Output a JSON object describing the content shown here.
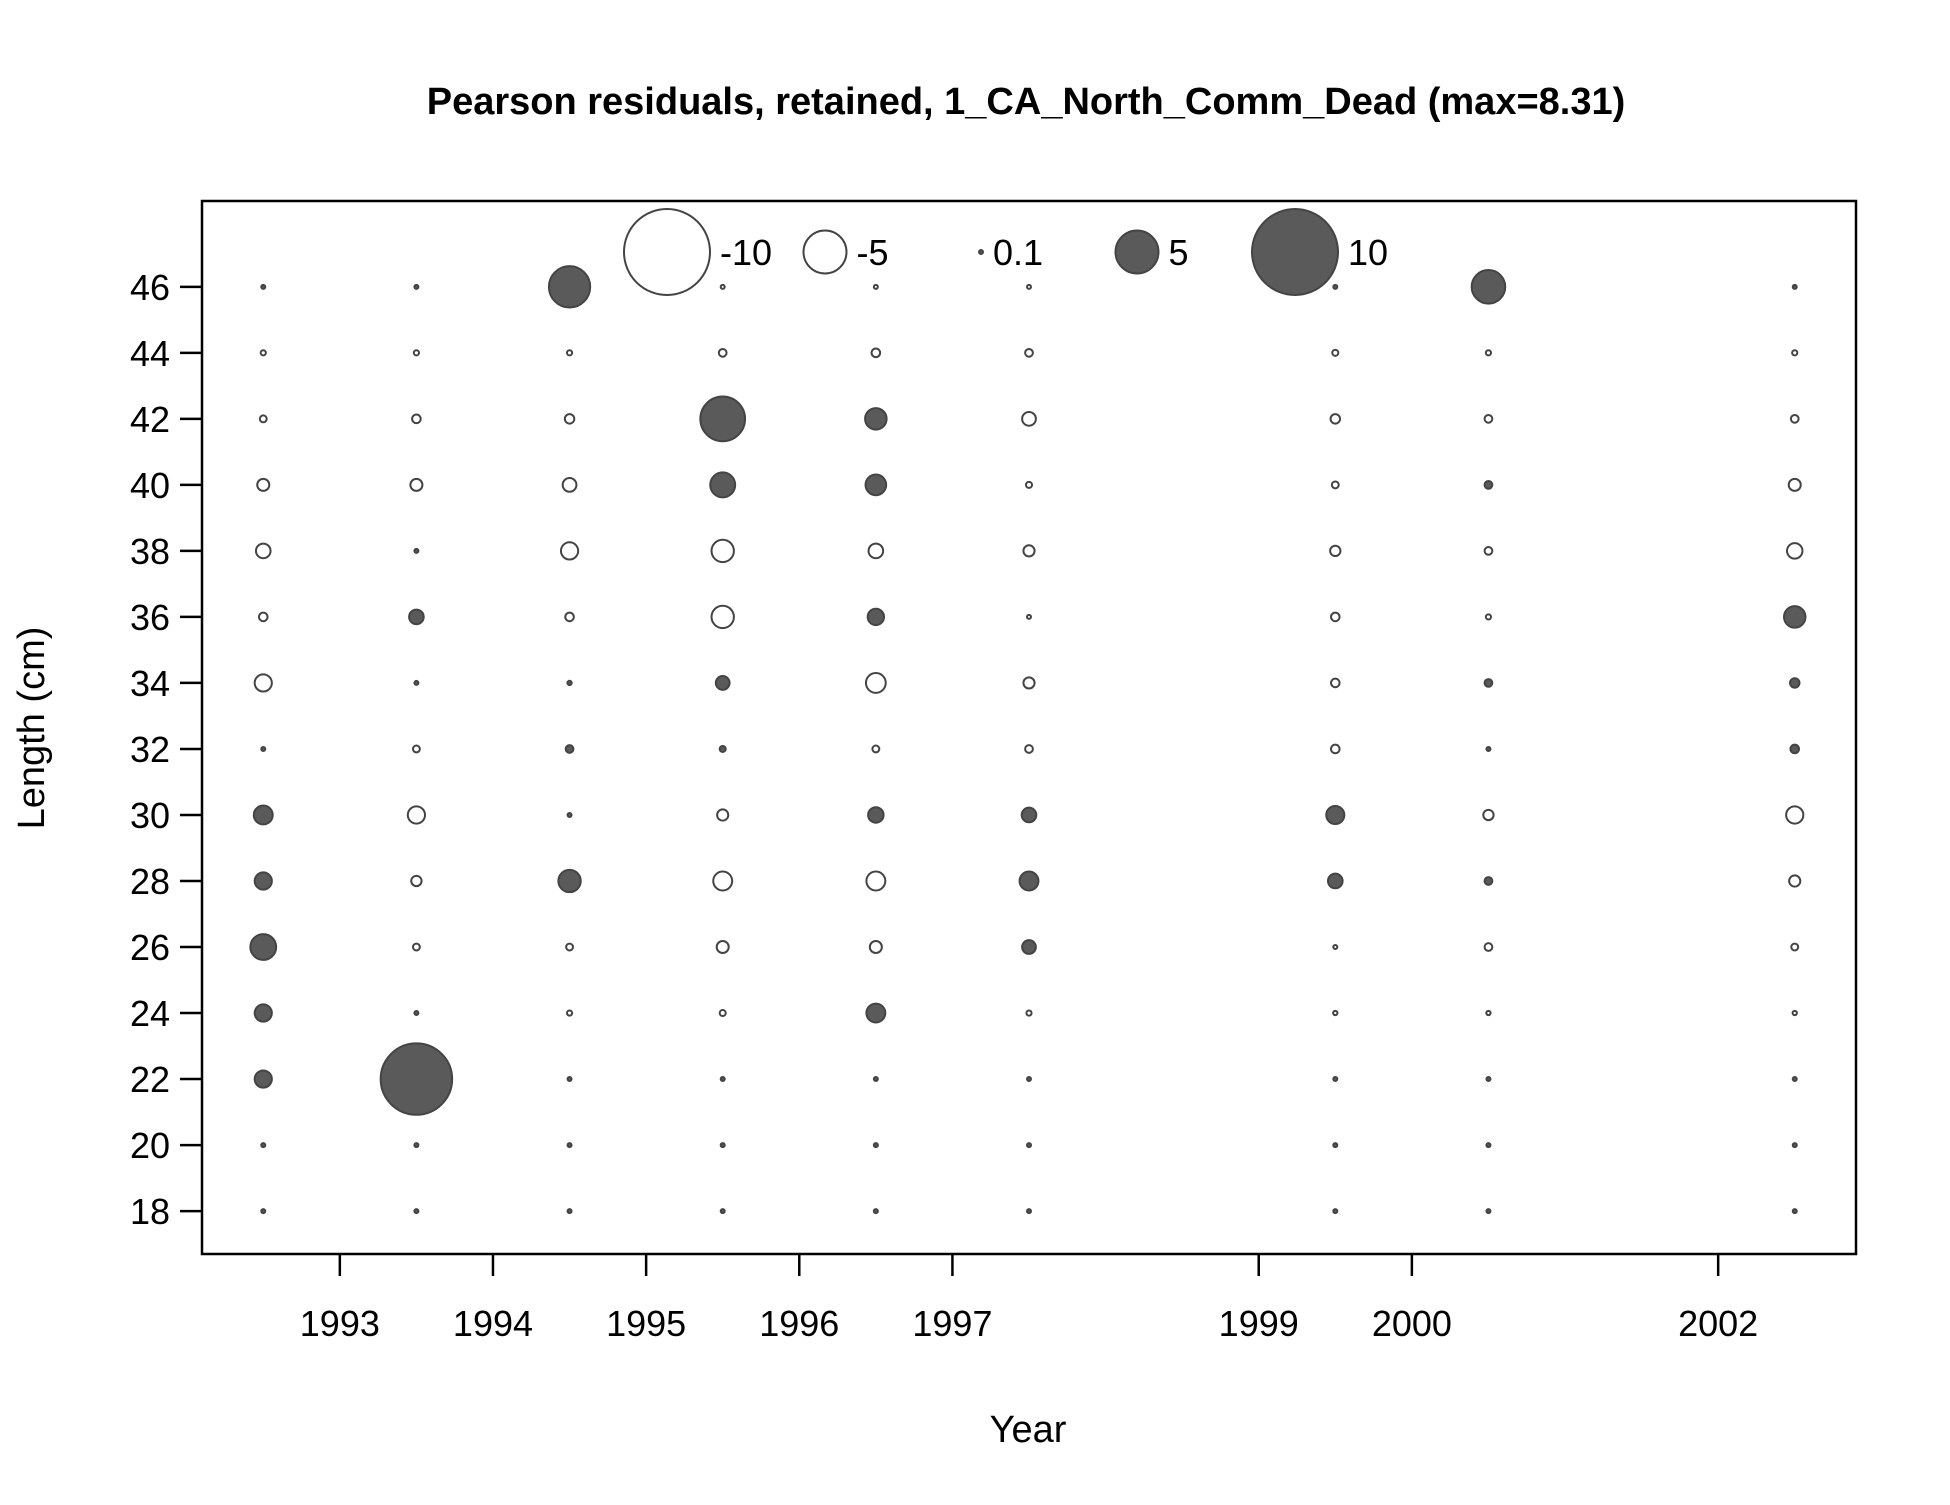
{
  "chart_data": {
    "type": "scatter",
    "title": "Pearson residuals, retained, 1_CA_North_Comm_Dead (max=8.31)",
    "xlabel": "Year",
    "ylabel": "Length (cm)",
    "xlim": [
      1992.1,
      2002.9
    ],
    "ylim": [
      16.7,
      48.6
    ],
    "x_ticks": [
      1993,
      1994,
      1995,
      1996,
      1997,
      1999,
      2000,
      2002
    ],
    "y_ticks": [
      18,
      20,
      22,
      24,
      26,
      28,
      30,
      32,
      34,
      36,
      38,
      40,
      42,
      44,
      46
    ],
    "legend": {
      "placement": "top-center",
      "labels": [
        "-10",
        "-5",
        "0.1",
        "5",
        "10"
      ],
      "values": [
        -10,
        -5,
        0.1,
        5,
        10
      ]
    },
    "colors": {
      "positive_fill": "#5a5a5a",
      "negative_fill": "#ffffff",
      "stroke": "#444444",
      "axis": "#000000"
    },
    "series": [
      {
        "year": 1992.5,
        "residuals": {
          "18": 0.05,
          "20": 0.05,
          "22": 2.0,
          "24": 2.0,
          "26": 3.0,
          "28": 2.0,
          "30": 2.2,
          "32": 0.3,
          "34": -2.0,
          "36": -1.0,
          "38": -1.7,
          "40": -1.4,
          "42": -0.8,
          "44": -0.6,
          "46": 0.3
        }
      },
      {
        "year": 1993.5,
        "residuals": {
          "18": 0.05,
          "20": 0.05,
          "22": 8.31,
          "24": 0.4,
          "26": -0.8,
          "28": -1.2,
          "30": -2.0,
          "32": -0.8,
          "34": 0.1,
          "36": 1.7,
          "38": 0.4,
          "40": -1.4,
          "42": -1.0,
          "44": -0.6,
          "46": 0.3
        }
      },
      {
        "year": 1994.5,
        "residuals": {
          "18": 0.05,
          "20": 0.05,
          "22": 0.05,
          "24": -0.6,
          "26": -0.8,
          "28": 2.6,
          "30": 0.4,
          "32": 0.9,
          "34": 0.5,
          "36": -1.0,
          "38": -2.0,
          "40": -1.6,
          "42": -1.1,
          "44": -0.6,
          "46": 4.8
        }
      },
      {
        "year": 1995.5,
        "residuals": {
          "18": 0.05,
          "20": 0.05,
          "22": 0.3,
          "24": -0.7,
          "26": -1.4,
          "28": -2.2,
          "30": -1.3,
          "32": 0.7,
          "34": 1.6,
          "36": -2.6,
          "38": -2.6,
          "40": 2.9,
          "42": 5.2,
          "44": -0.9,
          "46": -0.4
        }
      },
      {
        "year": 1996.5,
        "residuals": {
          "18": 0.05,
          "20": 0.05,
          "22": 0.3,
          "24": 2.2,
          "26": -1.4,
          "28": -2.2,
          "30": 1.8,
          "32": -0.8,
          "34": -2.3,
          "36": 1.9,
          "38": -1.7,
          "40": 2.4,
          "42": 2.5,
          "44": -1.0,
          "46": -0.4
        }
      },
      {
        "year": 1997.5,
        "residuals": {
          "18": 0.05,
          "20": 0.05,
          "22": 0.05,
          "24": -0.6,
          "26": 1.6,
          "28": 2.2,
          "30": 1.7,
          "32": -0.9,
          "34": -1.3,
          "36": -0.3,
          "38": -1.3,
          "40": -0.7,
          "42": -1.6,
          "44": -0.9,
          "46": -0.4
        }
      },
      {
        "year": 1999.5,
        "residuals": {
          "18": 0.05,
          "20": 0.05,
          "22": 0.05,
          "24": -0.5,
          "26": -0.4,
          "28": 1.7,
          "30": 2.1,
          "32": -1.0,
          "34": -1.0,
          "36": -1.0,
          "38": -1.2,
          "40": -0.8,
          "42": -1.1,
          "44": -0.7,
          "46": 0.3
        }
      },
      {
        "year": 2000.5,
        "residuals": {
          "18": 0.05,
          "20": 0.05,
          "22": 0.05,
          "24": -0.5,
          "26": -0.9,
          "28": 0.9,
          "30": -1.2,
          "32": 0.1,
          "34": 0.9,
          "36": -0.6,
          "38": -0.9,
          "40": 0.9,
          "42": -0.9,
          "44": -0.6,
          "46": 3.9
        }
      },
      {
        "year": 2002.5,
        "residuals": {
          "18": 0.05,
          "20": 0.05,
          "22": 0.05,
          "24": -0.5,
          "26": -0.8,
          "28": -1.3,
          "30": -2.0,
          "32": 1.0,
          "34": 1.1,
          "36": 2.5,
          "38": -1.8,
          "40": -1.4,
          "42": -0.9,
          "44": -0.6,
          "46": 0.3
        }
      }
    ]
  }
}
